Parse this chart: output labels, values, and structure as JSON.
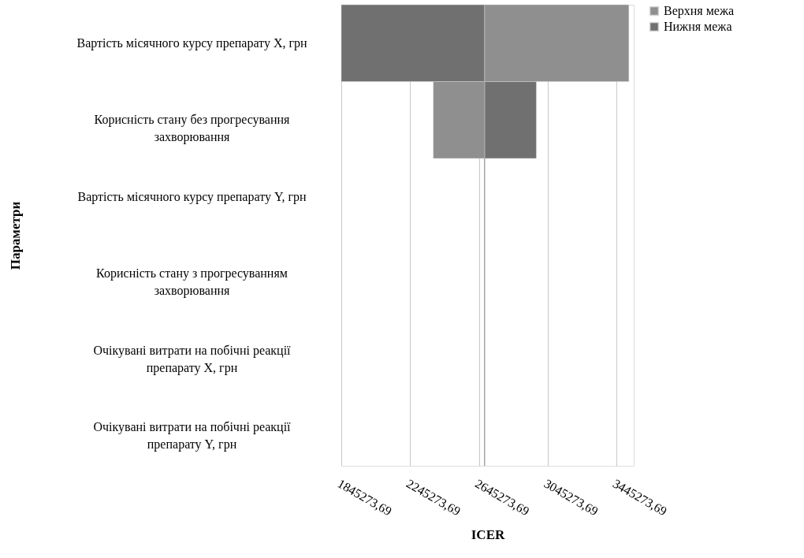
{
  "chart_data": {
    "type": "bar",
    "orientation": "horizontal",
    "xlabel": "ICER",
    "ylabel": "Параметри",
    "categories": [
      "Вартість місячного курсу  препарату X, грн",
      "Корисність стану без прогресування захворювання",
      "Вартість місячного курсу  препарату Y, грн",
      "Корисність стану з прогресуванням захворювання",
      "Очікувані витрати на побічні реакції препарату X, грн",
      "Очікувані витрати на побічні реакції препарату Y, грн"
    ],
    "series": [
      {
        "name": "Верхня межа",
        "color": "#8f8f8f",
        "base": [
          2678000,
          2380000,
          null,
          null,
          null,
          null
        ],
        "values": [
          839000,
          298000,
          null,
          null,
          null,
          null
        ]
      },
      {
        "name": "Нижня межа",
        "color": "#707070",
        "base": [
          1845000,
          2678000,
          null,
          null,
          null,
          null
        ],
        "values": [
          833000,
          301000,
          null,
          null,
          null,
          null
        ]
      }
    ],
    "xlim": [
      1845273.69,
      3545273.69
    ],
    "xticks": [
      {
        "value": 1845273.69,
        "label": "1845273,69"
      },
      {
        "value": 2245273.69,
        "label": "2245273,69"
      },
      {
        "value": 2645273.69,
        "label": "2645273,69"
      },
      {
        "value": 3045273.69,
        "label": "3045273,69"
      },
      {
        "value": 3445273.69,
        "label": "3445273,69"
      }
    ],
    "ref_lines": [
      {
        "axis": "x",
        "value": 2678000,
        "color": "#a6a6a6"
      }
    ],
    "grid": "x",
    "legend": "right"
  }
}
